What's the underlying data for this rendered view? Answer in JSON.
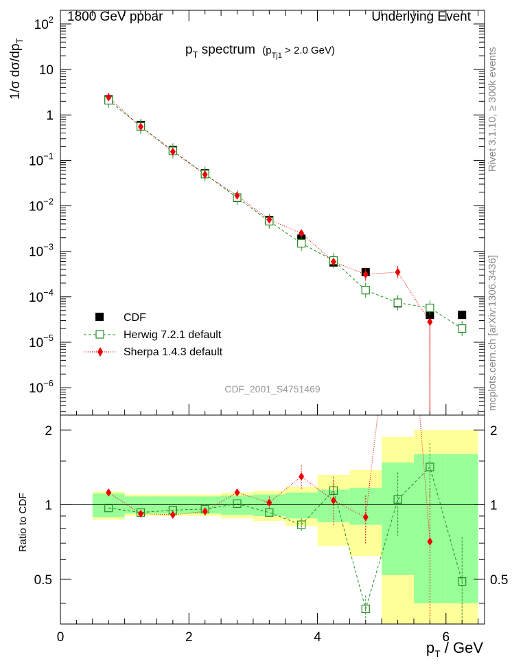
{
  "header": {
    "left": "1800 GeV ppbar",
    "right": "Underlying Event"
  },
  "main_title": {
    "text": "p",
    "sub": "T",
    "rest": " spectrum",
    "cut_open": "(p",
    "cut_sub": "Tj1",
    "cut_close": " > 2.0 GeV)"
  },
  "ylabel": {
    "lead": "1/σ dσ/dp",
    "sub": "T"
  },
  "xlabel": {
    "lead": "p",
    "sub": "T",
    "rest": " / GeV"
  },
  "ratio_ylabel": "Ratio to CDF",
  "analysis_id": "CDF_2001_S4751469",
  "side_text": {
    "rivet": "Rivet 3.1.10, ≥ 300k events",
    "mcplots": "mcplots.cern.ch [arXiv:1306.3436]"
  },
  "legend": [
    {
      "label": "CDF",
      "color": "#000000"
    },
    {
      "label": "Herwig 7.2.1 default",
      "color": "#228b22"
    },
    {
      "label": "Sherpa 1.4.3 default",
      "color": "#ee0000"
    }
  ],
  "chart_data": [
    {
      "type": "scatter",
      "yscale": "log",
      "xlim": [
        0,
        6.6
      ],
      "ylim": [
        2.5e-07,
        200
      ],
      "yticks": [
        {
          "v": 1e-06,
          "base": "10",
          "exp": "−6"
        },
        {
          "v": 1e-05,
          "base": "10",
          "exp": "−5"
        },
        {
          "v": 0.0001,
          "base": "10",
          "exp": "−4"
        },
        {
          "v": 0.001,
          "base": "10",
          "exp": "−3"
        },
        {
          "v": 0.01,
          "base": "10",
          "exp": "−2"
        },
        {
          "v": 0.1,
          "base": "10",
          "exp": "−1"
        },
        {
          "v": 1,
          "base": "1",
          "exp": ""
        },
        {
          "v": 10,
          "base": "10",
          "exp": ""
        },
        {
          "v": 100,
          "base": "10",
          "exp": "2"
        }
      ],
      "x": [
        0.75,
        1.25,
        1.75,
        2.25,
        2.75,
        3.25,
        3.75,
        4.25,
        4.75,
        5.25,
        5.75,
        6.25
      ],
      "series": [
        {
          "name": "CDF",
          "values": [
            2.2,
            0.6,
            0.17,
            0.052,
            0.015,
            0.0049,
            0.0019,
            0.00057,
            0.00035,
            7.2e-05,
            4e-05,
            4e-05
          ]
        },
        {
          "name": "Herwig 7.2.1 default",
          "values": [
            2.1,
            0.56,
            0.162,
            0.05,
            0.0152,
            0.0046,
            0.0015,
            0.00063,
            0.00014,
            7.4e-05,
            5.7e-05,
            2e-05
          ]
        },
        {
          "name": "Sherpa 1.4.3 default",
          "values": [
            2.45,
            0.55,
            0.155,
            0.049,
            0.0168,
            0.005,
            0.0025,
            0.00059,
            0.00031,
            0.00035,
            2.8e-05,
            null
          ]
        }
      ]
    },
    {
      "type": "scatter",
      "xlim": [
        0,
        6.6
      ],
      "ylim": [
        0.33,
        2.3
      ],
      "xticks": [
        0,
        2,
        4,
        6
      ],
      "yticks": [
        0.5,
        1,
        2
      ],
      "x": [
        0.75,
        1.25,
        1.75,
        2.25,
        2.75,
        3.25,
        3.75,
        4.25,
        4.75,
        5.25,
        5.75,
        6.25
      ],
      "band_edges": [
        0.5,
        1.0,
        1.5,
        2.0,
        2.5,
        3.0,
        3.5,
        4.0,
        4.5,
        5.0,
        5.5,
        6.0,
        6.5
      ],
      "band_inner": [
        0.11,
        0.08,
        0.08,
        0.08,
        0.09,
        0.1,
        0.12,
        0.15,
        0.17,
        0.48,
        0.6,
        0.6
      ],
      "band_outer": [
        0.13,
        0.1,
        0.1,
        0.1,
        0.12,
        0.14,
        0.18,
        0.32,
        0.38,
        0.88,
        1.0,
        1.0
      ],
      "series": [
        {
          "name": "Herwig 7.2.1 default",
          "values": [
            0.97,
            0.93,
            0.95,
            0.96,
            1.01,
            0.93,
            0.83,
            1.14,
            0.38,
            1.05,
            1.42,
            0.49
          ]
        },
        {
          "name": "Sherpa 1.4.3 default",
          "values": [
            1.12,
            0.92,
            0.91,
            0.94,
            1.12,
            1.02,
            1.3,
            1.04,
            0.89,
            null,
            0.71,
            null
          ]
        }
      ]
    }
  ]
}
